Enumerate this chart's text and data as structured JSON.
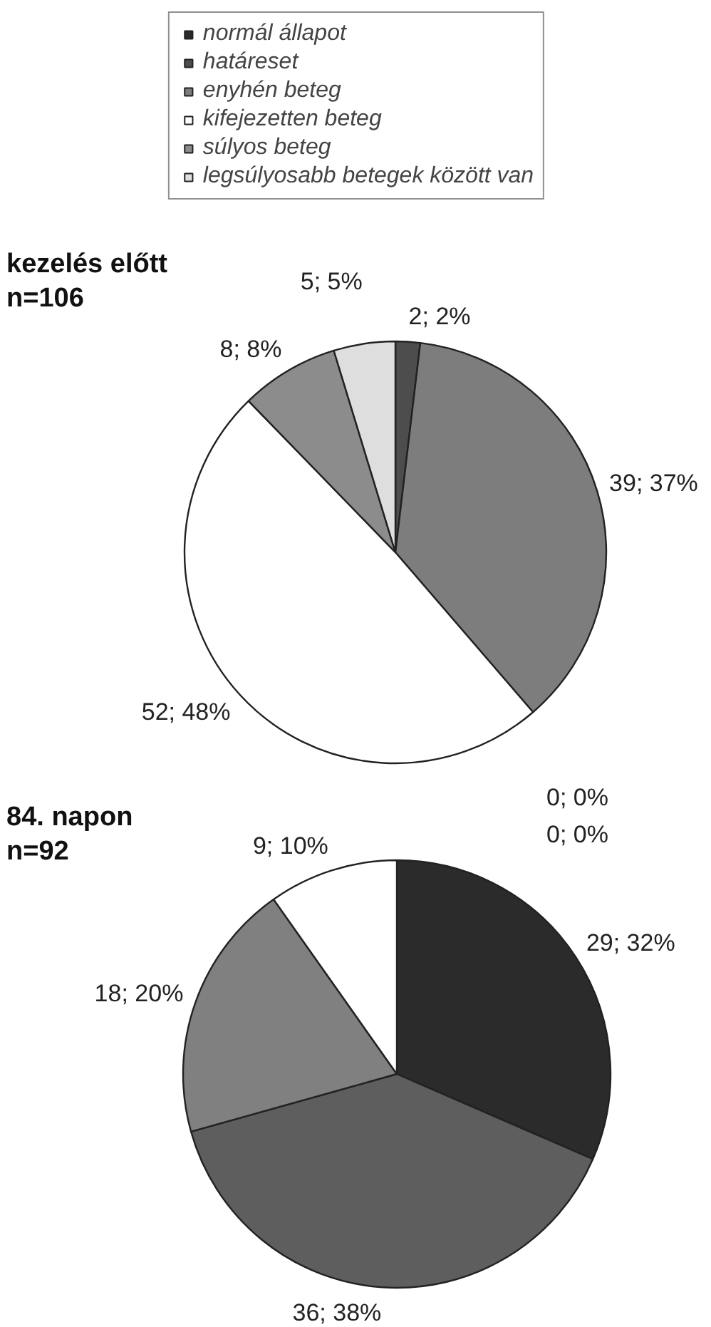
{
  "chart_data": [
    {
      "type": "pie",
      "title": "kezelés előtt",
      "subtitle": "n=106",
      "legend": "top",
      "categories": [
        "normál állapot",
        "határeset",
        "enyhén beteg",
        "kifejezetten beteg",
        "súlyos beteg",
        "legsúlyosabb betegek között van"
      ],
      "values": [
        0,
        2,
        39,
        52,
        8,
        5
      ],
      "colors": [
        "#2b2b2b",
        "#4d4d4d",
        "#7d7d7d",
        "#ffffff",
        "#8c8c8c",
        "#dedede"
      ],
      "value_labels": [
        null,
        "2; 2%",
        "39; 37%",
        "52; 48%",
        "8; 8%",
        "5; 5%"
      ]
    },
    {
      "type": "pie",
      "title": "84. napon",
      "subtitle": "n=92",
      "values": [
        29,
        36,
        18,
        9,
        0,
        0
      ],
      "colors": [
        "#2b2b2b",
        "#5e5e5e",
        "#808080",
        "#ffffff",
        "#8c8c8c",
        "#dedede"
      ],
      "value_labels": [
        "29; 32%",
        "36; 38%",
        "18; 20%",
        "9; 10%",
        "0; 0%",
        "0; 0%"
      ]
    }
  ]
}
